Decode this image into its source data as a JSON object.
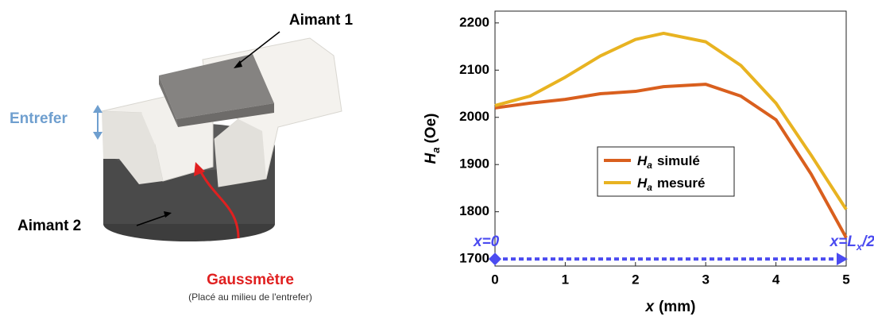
{
  "photo_labels": {
    "magnet1": "Aimant 1",
    "gap": "Entrefer",
    "magnet2": "Aimant 2",
    "sensor": "Gaussmètre",
    "sensor_note": "(Placé au milieu de l'entrefer)"
  },
  "chart_data": {
    "type": "line",
    "x_label": {
      "main": "x",
      "unit": "(mm)"
    },
    "y_label": {
      "main": "H",
      "sub": "a",
      "unit": "(Oe)"
    },
    "x": [
      0,
      0.5,
      1,
      1.5,
      2,
      2.4,
      3,
      3.5,
      4,
      4.5,
      5
    ],
    "series": [
      {
        "name": "simulé",
        "symbol": "H",
        "symbol_sub": "a",
        "color": "#d95f1e",
        "values": [
          2020,
          2030,
          2038,
          2050,
          2055,
          2065,
          2070,
          2045,
          1995,
          1880,
          1745
        ]
      },
      {
        "name": "mesuré",
        "symbol": "H",
        "symbol_sub": "a",
        "color": "#e8b321",
        "values": [
          2025,
          2045,
          2085,
          2130,
          2165,
          2178,
          2160,
          2110,
          2030,
          1920,
          1805
        ]
      }
    ],
    "xlim": [
      0,
      5
    ],
    "xticks": [
      0,
      1,
      2,
      3,
      4,
      5
    ],
    "ylim": [
      1685,
      2225
    ],
    "yticks": [
      1700,
      1800,
      1900,
      2000,
      2100,
      2200
    ],
    "grid": false,
    "annotations": [
      {
        "main": "x=0"
      },
      {
        "main": "x=L",
        "sub": "x",
        "after": "/2"
      }
    ],
    "arrow_color": "#4b4bf0"
  }
}
